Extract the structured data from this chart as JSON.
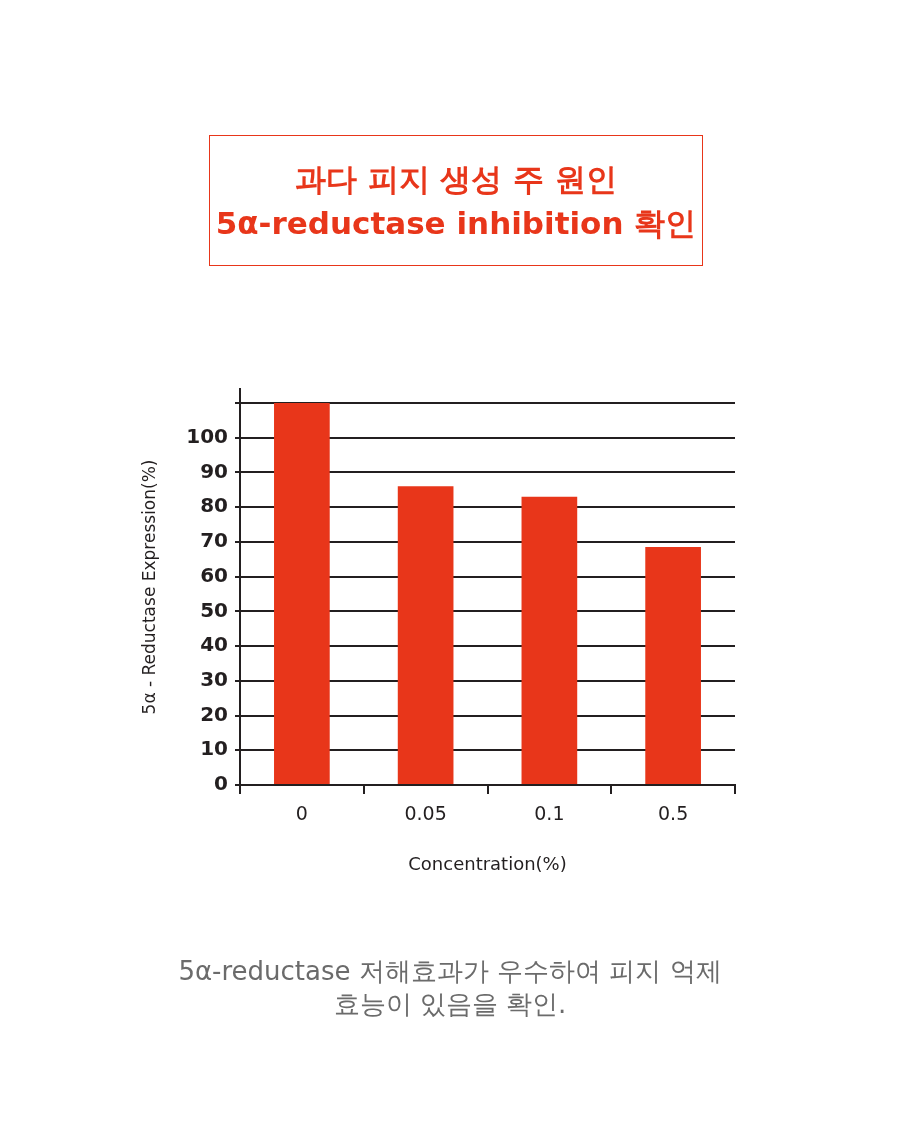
{
  "chart_data": {
    "type": "bar",
    "title": "과다 피지 생성 주 원인\n5α-reductase inhibition 확인",
    "xlabel": "Concentration(%)",
    "ylabel": "5α - Reductase Expression(%)",
    "categories": [
      "0",
      "0.05",
      "0.1",
      "0.5"
    ],
    "values": [
      110,
      86,
      83,
      68.5
    ],
    "color": "#e8361a",
    "ylim": [
      0,
      114
    ],
    "yticks": [
      0,
      10,
      20,
      30,
      40,
      50,
      60,
      70,
      80,
      90,
      100,
      {
        "value": 110,
        "label": null
      }
    ],
    "grid": "y",
    "annotations": [
      "5α-reductase 저해효과가 우수하여 피지 억제 효능이 있음을 확인."
    ]
  }
}
